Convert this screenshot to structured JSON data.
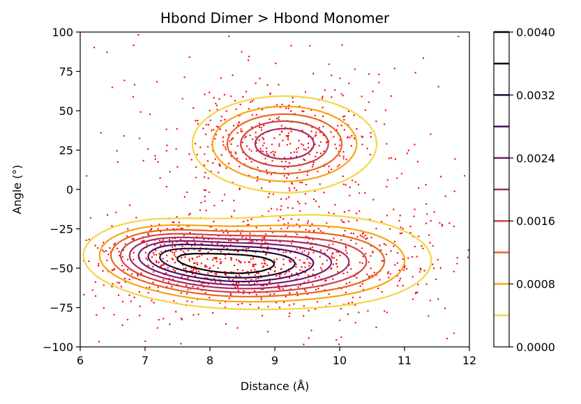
{
  "chart_data": {
    "type": "contour",
    "title": "Hbond Dimer > Hbond Monomer",
    "xlabel": "Distance (Å)",
    "ylabel": "Angle (°)",
    "xlim": [
      6,
      12
    ],
    "ylim": [
      -100,
      100
    ],
    "x_ticks": [
      "6",
      "7",
      "8",
      "9",
      "10",
      "11",
      "12"
    ],
    "y_ticks": [
      "−100",
      "−75",
      "−50",
      "−25",
      "0",
      "25",
      "50",
      "75",
      "100"
    ],
    "grid": false,
    "density_components": [
      {
        "cx": 9.15,
        "cy": 29,
        "sx": 0.75,
        "sy": 16,
        "w": 0.0024
      },
      {
        "cx": 8.35,
        "cy": -48,
        "sx": 0.9,
        "sy": 13,
        "w": 0.0034
      },
      {
        "cx": 7.2,
        "cy": -40,
        "sx": 0.6,
        "sy": 11,
        "w": 0.0018
      },
      {
        "cx": 9.9,
        "cy": -45,
        "sx": 0.9,
        "sy": 16,
        "w": 0.0016
      }
    ],
    "contour_levels": [
      0.0004,
      0.0008,
      0.0012,
      0.0016,
      0.002,
      0.0024,
      0.0028,
      0.0032,
      0.0036
    ],
    "contour_colors": [
      "#f5d545",
      "#f9a411",
      "#e8671e",
      "#cf4446",
      "#a52c60",
      "#7a1d6d",
      "#4b0c6b",
      "#1c0c40",
      "#000004"
    ],
    "scatter": {
      "color": "#ff0000",
      "n_points": 1500
    },
    "colorbar": {
      "min": 0.0,
      "max": 0.004,
      "tick_values": [
        0.0,
        0.0008,
        0.0016,
        0.0024,
        0.0032,
        0.004
      ],
      "tick_labels": [
        "0.0000",
        "0.0008",
        "0.0016",
        "0.0024",
        "0.0032",
        "0.0040"
      ],
      "line_values": [
        0.0004,
        0.0008,
        0.0012,
        0.0016,
        0.002,
        0.0024,
        0.0028,
        0.0032,
        0.0036,
        0.004
      ],
      "line_colors": [
        "#f5d545",
        "#f9a411",
        "#e8671e",
        "#cf4446",
        "#a52c60",
        "#7a1d6d",
        "#4b0c6b",
        "#1c0c40",
        "#000004",
        "#000004"
      ]
    }
  }
}
